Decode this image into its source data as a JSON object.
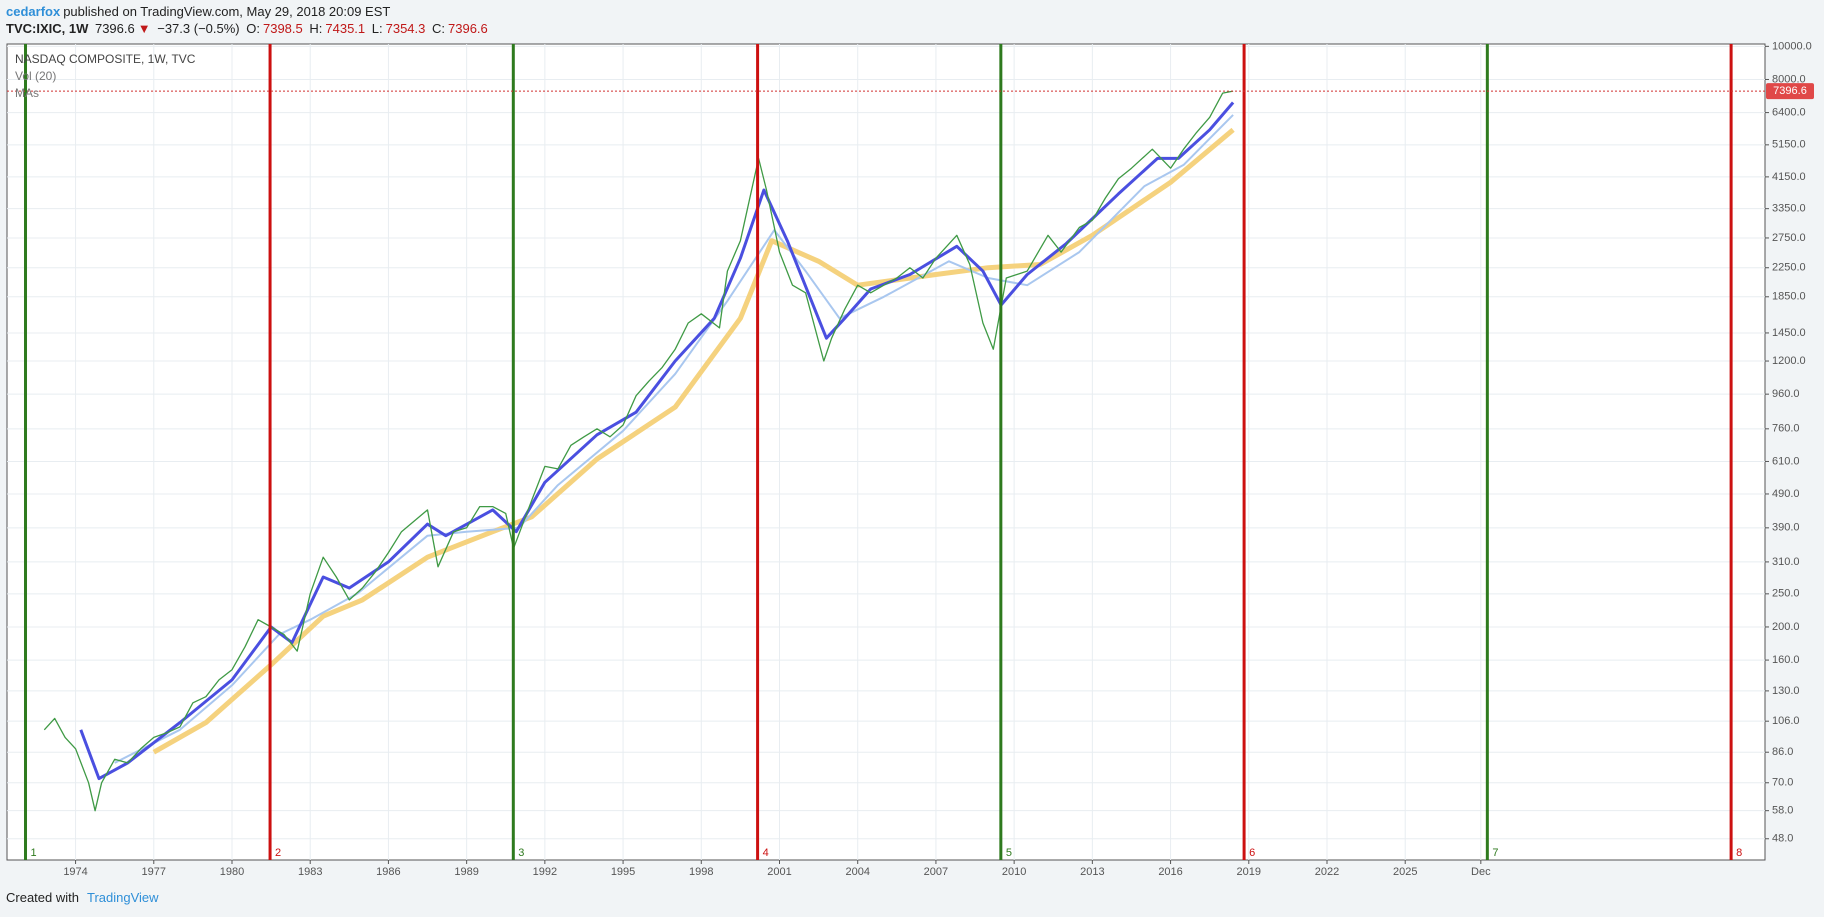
{
  "header": {
    "author": "cedarfox",
    "published": "published on TradingView.com, May 29, 2018 20:09 EST"
  },
  "symbol": {
    "name": "TVC:IXIC, 1W",
    "last": "7396.6",
    "change": "−37.3 (−0.5%)",
    "ohlc": [
      {
        "label": "O:",
        "value": "7398.5"
      },
      {
        "label": "H:",
        "value": "7435.1"
      },
      {
        "label": "L:",
        "value": "7354.3"
      },
      {
        "label": "C:",
        "value": "7396.6"
      }
    ]
  },
  "footer": {
    "created": "Created with",
    "brand": "TradingView"
  },
  "chart_data": {
    "type": "line",
    "title": "NASDAQ COMPOSITE, 1W, TVC",
    "legend": [
      "Vol (20)",
      "MAs"
    ],
    "log_scale": true,
    "grid": true,
    "xlim": [
      1971.37,
      2038.8
    ],
    "ylim": [
      41.6,
      10160
    ],
    "xticks": [
      1974,
      1977,
      1980,
      1983,
      1986,
      1989,
      1992,
      1995,
      1998,
      2001,
      2004,
      2007,
      2010,
      2013,
      2016,
      2019,
      2022,
      2025,
      {
        "value": 2027.9,
        "label": "Dec"
      }
    ],
    "yticks": [
      {
        "value": 10000,
        "label": "10000.0"
      },
      {
        "value": 8000,
        "label": "8000.0"
      },
      {
        "value": 6400,
        "label": "6400.0"
      },
      {
        "value": 5150,
        "label": "5150.0"
      },
      {
        "value": 4150,
        "label": "4150.0"
      },
      {
        "value": 3350,
        "label": "3350.0"
      },
      {
        "value": 2750,
        "label": "2750.0"
      },
      {
        "value": 2250,
        "label": "2250.0"
      },
      {
        "value": 1850,
        "label": "1850.0"
      },
      {
        "value": 1450,
        "label": "1450.0"
      },
      {
        "value": 1200,
        "label": "1200.0"
      },
      {
        "value": 960,
        "label": "960.0"
      },
      {
        "value": 760,
        "label": "760.0"
      },
      {
        "value": 610,
        "label": "610.0"
      },
      {
        "value": 490,
        "label": "490.0"
      },
      {
        "value": 390,
        "label": "390.0"
      },
      {
        "value": 310,
        "label": "310.0"
      },
      {
        "value": 250,
        "label": "250.0"
      },
      {
        "value": 200,
        "label": "200.0"
      },
      {
        "value": 160,
        "label": "160.0"
      },
      {
        "value": 130,
        "label": "130.0"
      },
      {
        "value": 106,
        "label": "106.0"
      },
      {
        "value": 86,
        "label": "86.0"
      },
      {
        "value": 70,
        "label": "70.0"
      },
      {
        "value": 58,
        "label": "58.0"
      },
      {
        "value": 48,
        "label": "48.0"
      }
    ],
    "last_price": {
      "value": 7396.6,
      "label": "7396.6"
    },
    "vlines": [
      {
        "x": 1972.08,
        "label": "1",
        "color": "#2e7a1e"
      },
      {
        "x": 1981.46,
        "label": "2",
        "color": "#cc1010"
      },
      {
        "x": 1990.79,
        "label": "3",
        "color": "#2e7a1e"
      },
      {
        "x": 2000.16,
        "label": "4",
        "color": "#cc1010"
      },
      {
        "x": 2009.49,
        "label": "5",
        "color": "#2e7a1e"
      },
      {
        "x": 2018.82,
        "label": "6",
        "color": "#cc1010"
      },
      {
        "x": 2028.15,
        "label": "7",
        "color": "#2e7a1e"
      },
      {
        "x": 2037.5,
        "label": "8",
        "color": "#cc1010"
      }
    ],
    "series": [
      {
        "color": "#f5d27e",
        "width": 5,
        "x": [
          1977,
          1979,
          1981.5,
          1983.5,
          1985,
          1987.5,
          1990,
          1991.5,
          1994,
          1997,
          1999.5,
          2000.7,
          2002.5,
          2004,
          2007,
          2009,
          2011,
          2013,
          2016,
          2018.4
        ],
        "values": [
          86,
          105,
          155,
          215,
          240,
          320,
          380,
          420,
          620,
          880,
          1600,
          2700,
          2350,
          2000,
          2150,
          2250,
          2300,
          2800,
          4000,
          5700
        ]
      },
      {
        "color": "#a9c7ef",
        "width": 2,
        "x": [
          1975.5,
          1978,
          1980,
          1981.8,
          1983,
          1984.8,
          1987.5,
          1989,
          1991,
          1992.5,
          1995,
          1997,
          1999,
          2000.8,
          2002,
          2003.3,
          2005,
          2007.5,
          2009,
          2010.5,
          2012.5,
          2015,
          2016.5,
          2018.4
        ],
        "values": [
          80,
          100,
          135,
          190,
          210,
          250,
          370,
          380,
          390,
          520,
          750,
          1100,
          1800,
          2900,
          2200,
          1600,
          1850,
          2350,
          2100,
          2000,
          2500,
          3900,
          4500,
          6300
        ]
      },
      {
        "color": "#4a4fe0",
        "width": 3,
        "x": [
          1974.2,
          1974.9,
          1976,
          1978,
          1980,
          1981.5,
          1982.3,
          1983.5,
          1984.5,
          1986,
          1987.5,
          1988.2,
          1990,
          1990.9,
          1992,
          1994,
          1995.5,
          1997,
          1998.5,
          1999.5,
          2000.4,
          2001.3,
          2002.8,
          2003.5,
          2004.5,
          2006,
          2007.8,
          2008.8,
          2009.5,
          2010.5,
          2012,
          2014,
          2015.5,
          2016.3,
          2017.5,
          2018.4
        ],
        "values": [
          100,
          72,
          80,
          105,
          140,
          200,
          180,
          280,
          260,
          310,
          400,
          370,
          440,
          380,
          530,
          730,
          850,
          1200,
          1600,
          2400,
          3800,
          2700,
          1400,
          1600,
          1950,
          2150,
          2600,
          2200,
          1750,
          2150,
          2650,
          3700,
          4700,
          4700,
          5700,
          6850
        ]
      },
      {
        "color": "#3f9a45",
        "width": 1.3,
        "x": [
          1972.8,
          1973.2,
          1973.6,
          1974.0,
          1974.5,
          1974.75,
          1975.0,
          1975.5,
          1976.0,
          1976.5,
          1977.0,
          1977.5,
          1978.0,
          1978.5,
          1979.0,
          1979.5,
          1980.0,
          1980.5,
          1981.0,
          1981.5,
          1982.0,
          1982.5,
          1983.0,
          1983.5,
          1984.0,
          1984.5,
          1985.0,
          1985.5,
          1986.0,
          1986.5,
          1987.5,
          1987.9,
          1988.5,
          1989.0,
          1989.5,
          1990.0,
          1990.5,
          1990.8,
          1991.5,
          1992.0,
          1992.5,
          1993.0,
          1993.5,
          1994.0,
          1994.5,
          1995.0,
          1995.5,
          1996.0,
          1996.5,
          1997.0,
          1997.5,
          1998.0,
          1998.7,
          1999.0,
          1999.5,
          2000.2,
          2000.5,
          2001.0,
          2001.5,
          2002.0,
          2002.7,
          2003.0,
          2003.5,
          2004.0,
          2004.5,
          2005.0,
          2005.5,
          2006.0,
          2006.5,
          2007.0,
          2007.8,
          2008.3,
          2008.8,
          2009.2,
          2009.7,
          2010.5,
          2011.3,
          2011.8,
          2012.5,
          2013.0,
          2013.5,
          2014.0,
          2014.5,
          2015.3,
          2016.0,
          2016.5,
          2017.0,
          2017.5,
          2018.0,
          2018.4
        ],
        "values": [
          100,
          108,
          95,
          88,
          70,
          58,
          70,
          82,
          80,
          88,
          95,
          98,
          102,
          120,
          125,
          140,
          150,
          175,
          210,
          200,
          190,
          170,
          250,
          320,
          280,
          240,
          260,
          290,
          330,
          380,
          440,
          300,
          380,
          390,
          450,
          450,
          430,
          340,
          470,
          590,
          580,
          680,
          720,
          760,
          720,
          780,
          950,
          1050,
          1150,
          1300,
          1550,
          1650,
          1500,
          2200,
          2700,
          4700,
          3800,
          2500,
          2000,
          1900,
          1200,
          1400,
          1700,
          2000,
          1900,
          2000,
          2100,
          2250,
          2100,
          2400,
          2800,
          2300,
          1550,
          1300,
          2100,
          2200,
          2800,
          2500,
          2950,
          3100,
          3600,
          4100,
          4400,
          5000,
          4400,
          5000,
          5600,
          6200,
          7300,
          7396.6
        ]
      }
    ]
  }
}
